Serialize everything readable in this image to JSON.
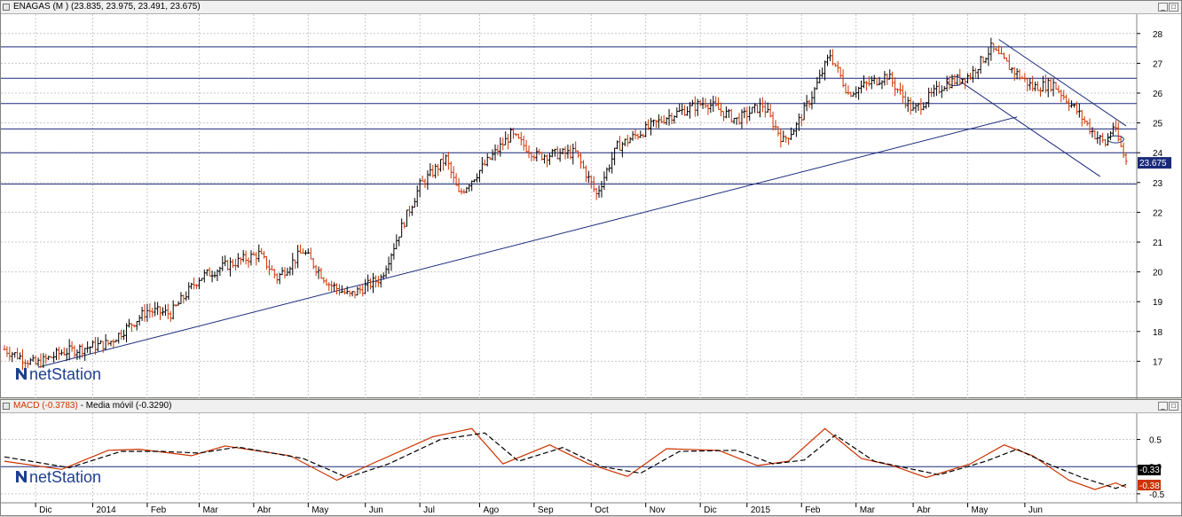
{
  "price_panel": {
    "title": "ENAGAS (M ) (23.835, 23.975, 23.491, 23.675)",
    "brand": "netStation",
    "last_price_label": "23.675"
  },
  "macd_panel": {
    "title_macd": "MACD (-0.3783)",
    "title_ma": "Media móvil (-0.3290)",
    "brand": "netStation",
    "macd_value_label": "-0.38",
    "signal_value_label": "-0.33"
  },
  "x_axis": [
    "Dic",
    "2014",
    "Feb",
    "Mar",
    "Abr",
    "May",
    "Jun",
    "Jul",
    "Ago",
    "Sep",
    "Oct",
    "Nov",
    "Dic",
    "2015",
    "Feb",
    "Mar",
    "Abr",
    "May",
    "Jun"
  ],
  "chart_data": [
    {
      "type": "ohlc",
      "ylim": [
        16,
        28.5
      ],
      "yticks": [
        17,
        18,
        19,
        20,
        21,
        22,
        23,
        24,
        25,
        26,
        27,
        28
      ],
      "horizontal_levels": [
        27.55,
        26.5,
        25.65,
        24.8,
        24.0,
        22.95
      ],
      "last_close": 23.675,
      "colors": {
        "up": "#000000",
        "down": "#cc3300",
        "lines": "#1a2a7a"
      },
      "price_path": [
        [
          0,
          17.4
        ],
        [
          12,
          16.9
        ],
        [
          22,
          17.3
        ],
        [
          40,
          17.6
        ],
        [
          55,
          18.7
        ],
        [
          64,
          18.6
        ],
        [
          75,
          19.8
        ],
        [
          85,
          20.2
        ],
        [
          98,
          20.6
        ],
        [
          105,
          19.8
        ],
        [
          115,
          20.7
        ],
        [
          125,
          19.6
        ],
        [
          133,
          19.2
        ],
        [
          145,
          19.8
        ],
        [
          152,
          21.3
        ],
        [
          160,
          22.9
        ],
        [
          170,
          23.8
        ],
        [
          175,
          22.6
        ],
        [
          183,
          23.4
        ],
        [
          195,
          24.6
        ],
        [
          205,
          23.9
        ],
        [
          220,
          24.0
        ],
        [
          228,
          22.6
        ],
        [
          236,
          24.2
        ],
        [
          255,
          25.2
        ],
        [
          270,
          25.7
        ],
        [
          282,
          25.1
        ],
        [
          292,
          25.6
        ],
        [
          300,
          24.4
        ],
        [
          305,
          24.9
        ],
        [
          312,
          26.1
        ],
        [
          318,
          27.3
        ],
        [
          325,
          26.0
        ],
        [
          340,
          26.6
        ],
        [
          350,
          25.4
        ],
        [
          362,
          26.3
        ],
        [
          372,
          26.6
        ],
        [
          380,
          27.5
        ],
        [
          388,
          26.8
        ],
        [
          396,
          26.2
        ],
        [
          404,
          26.3
        ],
        [
          413,
          25.4
        ],
        [
          420,
          24.6
        ],
        [
          424,
          24.3
        ],
        [
          427,
          24.9
        ],
        [
          432,
          23.7
        ]
      ]
    },
    {
      "type": "line",
      "ylim": [
        -0.6,
        0.9
      ],
      "yticks": [
        -0.5,
        0.0,
        0.5
      ],
      "series": [
        {
          "color": "#cc3300",
          "points": [
            [
              0,
              0.1
            ],
            [
              22,
              -0.05
            ],
            [
              40,
              0.3
            ],
            [
              52,
              0.32
            ],
            [
              72,
              0.2
            ],
            [
              85,
              0.38
            ],
            [
              110,
              0.2
            ],
            [
              128,
              -0.25
            ],
            [
              140,
              0.02
            ],
            [
              165,
              0.55
            ],
            [
              180,
              0.7
            ],
            [
              192,
              0.05
            ],
            [
              210,
              0.4
            ],
            [
              225,
              0.05
            ],
            [
              240,
              -0.18
            ],
            [
              255,
              0.33
            ],
            [
              275,
              0.3
            ],
            [
              290,
              0.02
            ],
            [
              302,
              0.1
            ],
            [
              316,
              0.7
            ],
            [
              330,
              0.15
            ],
            [
              342,
              0.02
            ],
            [
              355,
              -0.2
            ],
            [
              372,
              0.05
            ],
            [
              385,
              0.4
            ],
            [
              396,
              0.2
            ],
            [
              410,
              -0.25
            ],
            [
              420,
              -0.42
            ],
            [
              428,
              -0.3
            ],
            [
              432,
              -0.38
            ]
          ]
        },
        {
          "color": "#000000",
          "dashed": true,
          "points": [
            [
              0,
              0.18
            ],
            [
              25,
              -0.02
            ],
            [
              45,
              0.28
            ],
            [
              60,
              0.28
            ],
            [
              75,
              0.25
            ],
            [
              90,
              0.36
            ],
            [
              115,
              0.15
            ],
            [
              132,
              -0.2
            ],
            [
              148,
              0.05
            ],
            [
              168,
              0.5
            ],
            [
              185,
              0.62
            ],
            [
              198,
              0.1
            ],
            [
              215,
              0.35
            ],
            [
              230,
              0.0
            ],
            [
              245,
              -0.12
            ],
            [
              260,
              0.28
            ],
            [
              282,
              0.3
            ],
            [
              296,
              0.05
            ],
            [
              308,
              0.12
            ],
            [
              320,
              0.58
            ],
            [
              335,
              0.1
            ],
            [
              350,
              -0.05
            ],
            [
              360,
              -0.15
            ],
            [
              378,
              0.1
            ],
            [
              390,
              0.32
            ],
            [
              402,
              0.05
            ],
            [
              415,
              -0.2
            ],
            [
              428,
              -0.4
            ],
            [
              432,
              -0.33
            ]
          ]
        }
      ]
    }
  ]
}
